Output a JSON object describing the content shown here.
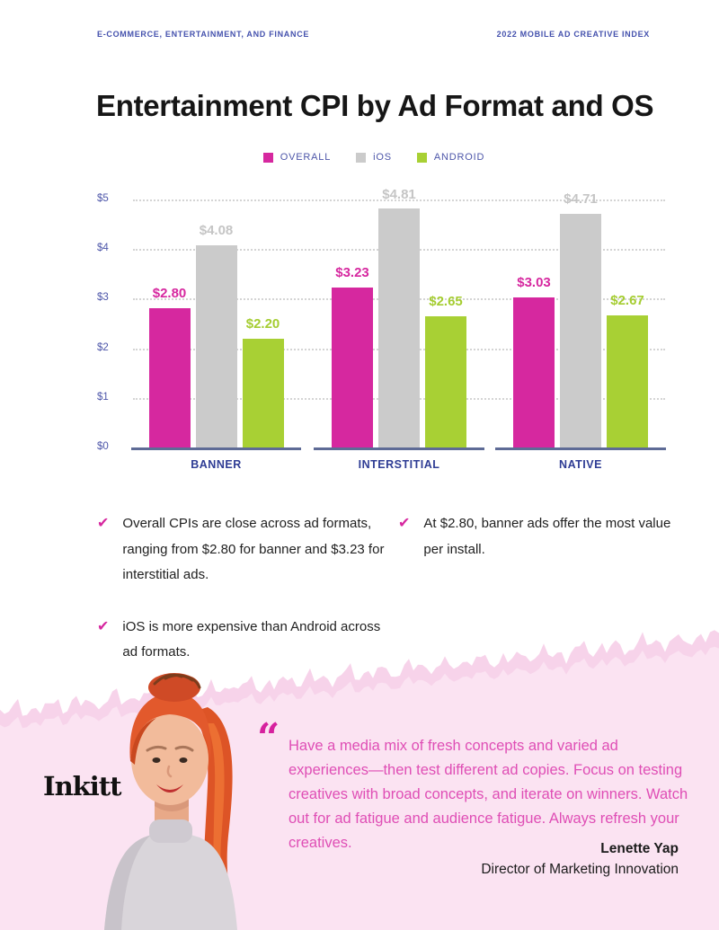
{
  "header": {
    "left": "E-COMMERCE, ENTERTAINMENT, AND FINANCE",
    "right": "2022 MOBILE AD CREATIVE INDEX"
  },
  "title": "Entertainment CPI by Ad Format and OS",
  "chart_data": {
    "type": "bar",
    "title": "Entertainment CPI by Ad Format and OS",
    "categories": [
      "BANNER",
      "INTERSTITIAL",
      "NATIVE"
    ],
    "series": [
      {
        "name": "OVERALL",
        "color": "#d6289f",
        "label_color": "#d6289f",
        "values": [
          2.8,
          3.23,
          3.03
        ],
        "data_labels": [
          "$2.80",
          "$3.23",
          "$3.03"
        ]
      },
      {
        "name": "iOS",
        "color": "#cbcbcb",
        "label_color": "#c5c5c5",
        "values": [
          4.08,
          4.81,
          4.71
        ],
        "data_labels": [
          "$4.08",
          "$4.81",
          "$4.71"
        ]
      },
      {
        "name": "ANDROID",
        "color": "#a8d034",
        "label_color": "#a5cd31",
        "values": [
          2.2,
          2.65,
          2.67
        ],
        "data_labels": [
          "$2.20",
          "$2.65",
          "$2.67"
        ]
      }
    ],
    "xlabel": "",
    "ylabel": "",
    "ylim": [
      0,
      5
    ],
    "y_ticks": [
      {
        "label": "$5",
        "value": 5
      },
      {
        "label": "$4",
        "value": 4
      },
      {
        "label": "$3",
        "value": 3
      },
      {
        "label": "$2",
        "value": 2
      },
      {
        "label": "$1",
        "value": 1
      },
      {
        "label": "$0",
        "value": 0
      }
    ],
    "grid": "horizontal-dotted",
    "legend_position": "top-center"
  },
  "takeaways": {
    "check_icon": "✔",
    "left": [
      "Overall CPIs are close across ad formats, ranging from $2.80 for banner and $3.23 for interstitial ads.",
      "iOS is more expensive than Android across ad formats."
    ],
    "right": [
      "At $2.80, banner ads offer the most value per install."
    ]
  },
  "quote": {
    "mark": "“",
    "text": "Have a media mix of fresh concepts and varied ad experiences—then test different ad copies. Focus on testing creatives with broad concepts, and iterate on winners. Watch out for ad fatigue and audience fatigue. Always refresh your creatives.",
    "author": "Lenette Yap",
    "role": "Director of Marketing Innovation"
  },
  "brand": {
    "logo_text": "Inkitt"
  },
  "colors": {
    "accent_magenta": "#d6289f",
    "ios_gray": "#cbcbcb",
    "android_green": "#a8d034",
    "axis_text": "#4d56a9",
    "category_text": "#2e3c94",
    "header_text": "#4451ad",
    "baseline": "#5e6b96",
    "pink_bg": "#fbe3f2",
    "pink_fringe": "#f7d3ea",
    "quote_text": "#df4eb5"
  }
}
